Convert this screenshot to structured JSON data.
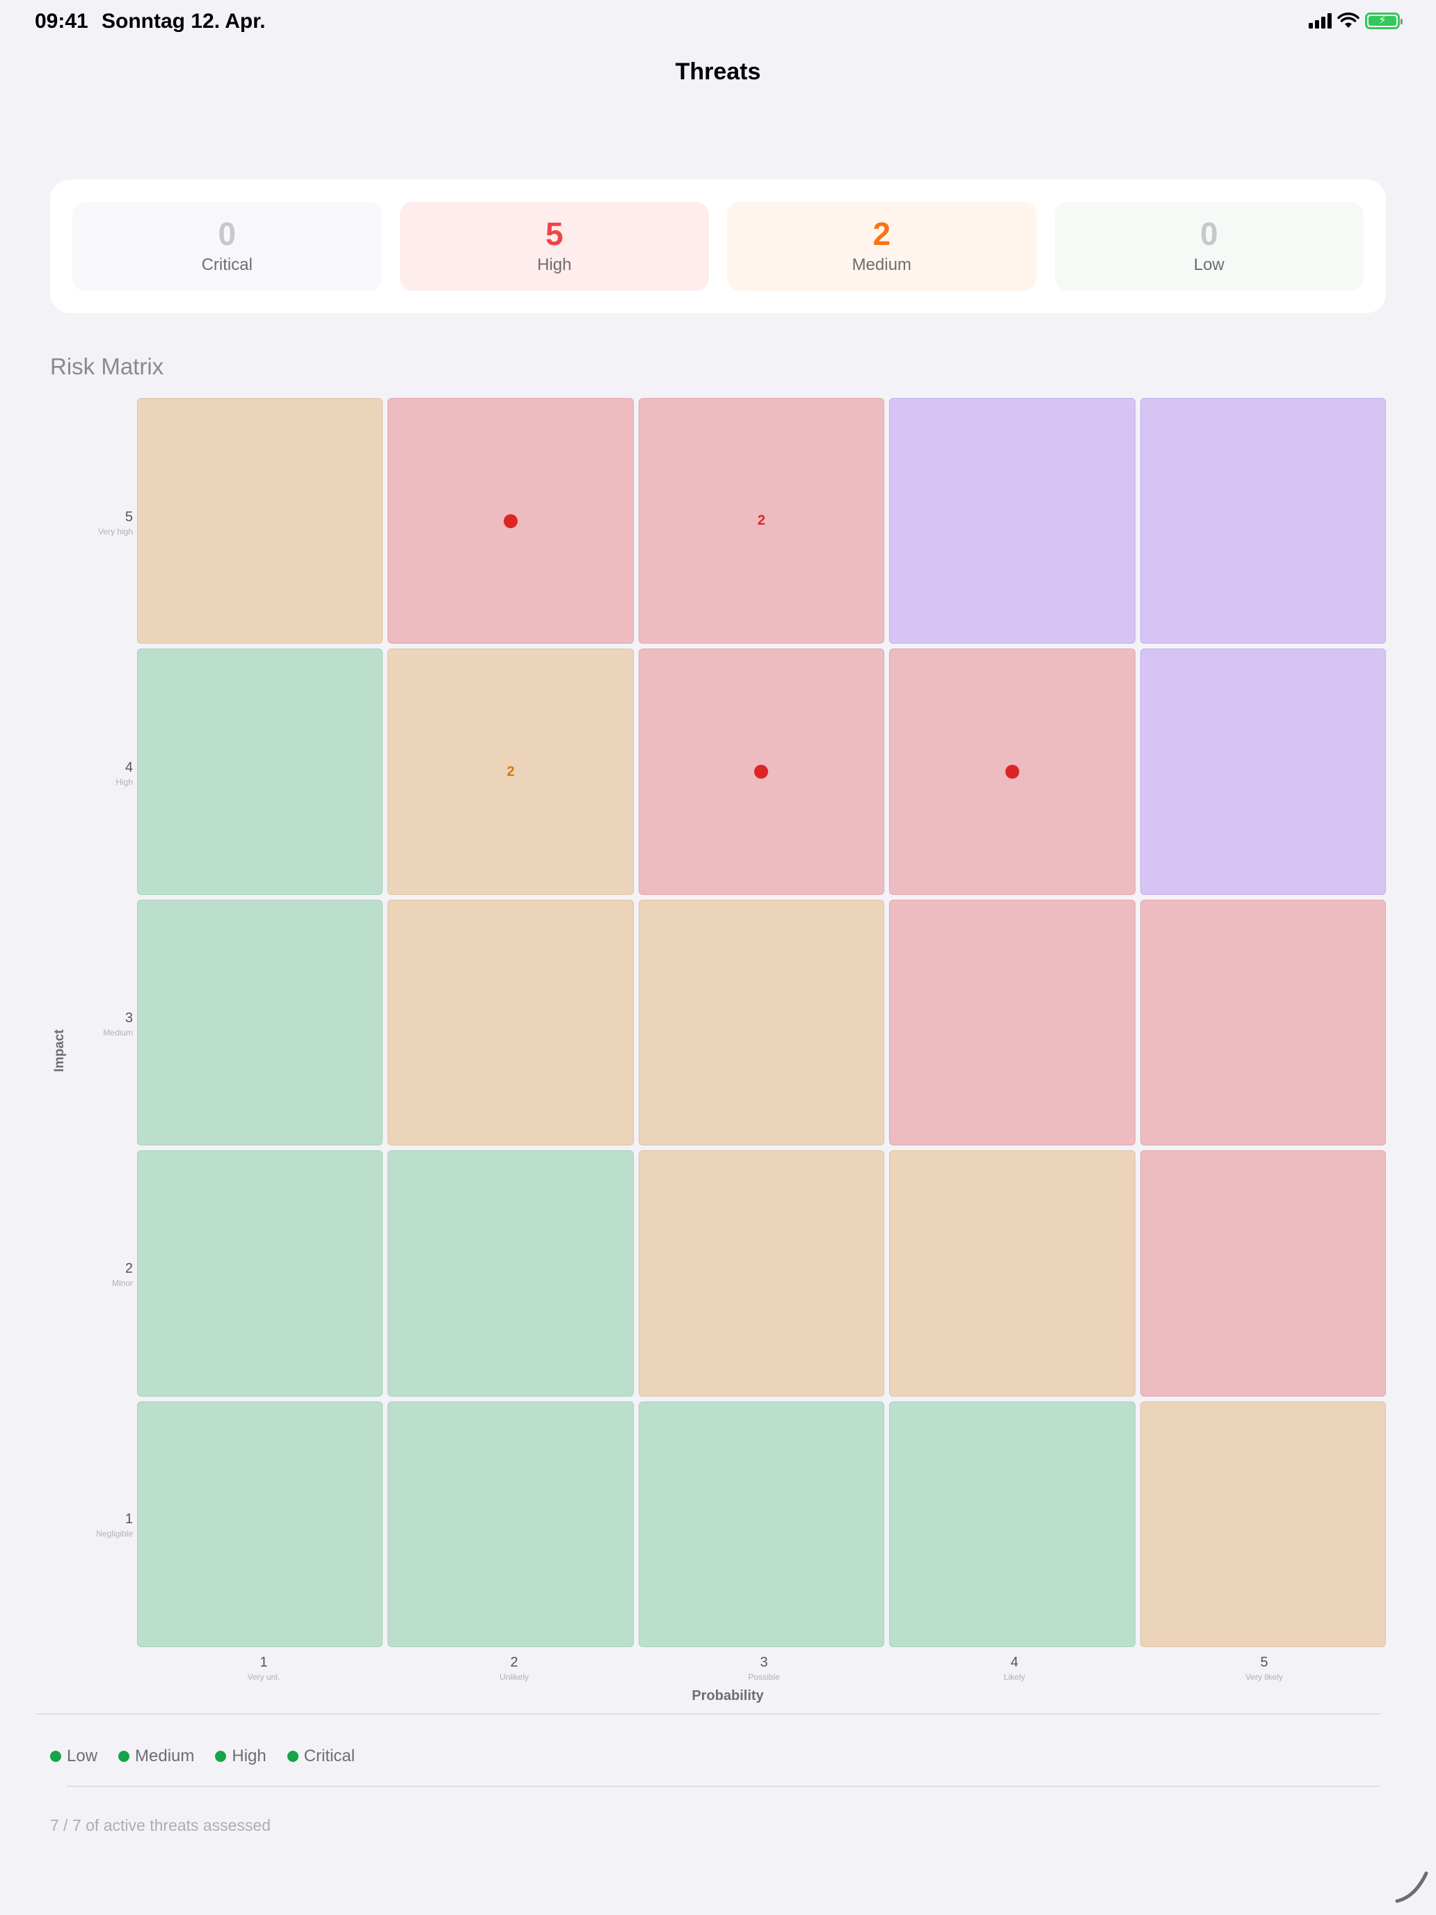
{
  "status": {
    "time": "09:41",
    "date": "Sonntag 12. Apr."
  },
  "nav": {
    "title": "Threats"
  },
  "summary": [
    {
      "count": "0",
      "label": "Critical",
      "count_color": "#c7c7cc",
      "tile_bg": "#f8f7fc"
    },
    {
      "count": "5",
      "label": "High",
      "count_color": "#ef4444",
      "tile_bg": "#ffeded"
    },
    {
      "count": "2",
      "label": "Medium",
      "count_color": "#f97316",
      "tile_bg": "#fff5ec"
    },
    {
      "count": "0",
      "label": "Low",
      "count_color": "#c7c7cc",
      "tile_bg": "#f6faf7"
    }
  ],
  "matrix": {
    "title": "Risk Matrix",
    "y_axis": "Impact",
    "x_axis": "Probability",
    "impact_levels": [
      {
        "value": "5",
        "label": "Very high"
      },
      {
        "value": "4",
        "label": "High"
      },
      {
        "value": "3",
        "label": "Medium"
      },
      {
        "value": "2",
        "label": "Minor"
      },
      {
        "value": "1",
        "label": "Negligible"
      }
    ],
    "probability_levels": [
      {
        "value": "1",
        "label": "Very unl."
      },
      {
        "value": "2",
        "label": "Unlikely"
      },
      {
        "value": "3",
        "label": "Possible"
      },
      {
        "value": "4",
        "label": "Likely"
      },
      {
        "value": "5",
        "label": "Very likely"
      }
    ],
    "rows": [
      [
        {
          "level": "medium"
        },
        {
          "level": "high",
          "threats": 1
        },
        {
          "level": "high",
          "threats": 2
        },
        {
          "level": "critical"
        },
        {
          "level": "critical"
        }
      ],
      [
        {
          "level": "low"
        },
        {
          "level": "medium",
          "threats": 2
        },
        {
          "level": "high",
          "threats": 1
        },
        {
          "level": "high",
          "threats": 1
        },
        {
          "level": "critical"
        }
      ],
      [
        {
          "level": "low"
        },
        {
          "level": "medium"
        },
        {
          "level": "medium"
        },
        {
          "level": "high"
        },
        {
          "level": "high"
        }
      ],
      [
        {
          "level": "low"
        },
        {
          "level": "low"
        },
        {
          "level": "medium"
        },
        {
          "level": "medium"
        },
        {
          "level": "high"
        }
      ],
      [
        {
          "level": "low"
        },
        {
          "level": "low"
        },
        {
          "level": "low"
        },
        {
          "level": "low"
        },
        {
          "level": "medium"
        }
      ]
    ],
    "marker_colors": {
      "high": "#dc2626",
      "medium": "#d97706"
    }
  },
  "legend": [
    {
      "label": "Low",
      "color": "#16a34a"
    },
    {
      "label": "Medium",
      "color": "#16a34a"
    },
    {
      "label": "High",
      "color": "#16a34a"
    },
    {
      "label": "Critical",
      "color": "#16a34a"
    }
  ],
  "footer": {
    "note": "7 / 7 of active threats assessed"
  }
}
